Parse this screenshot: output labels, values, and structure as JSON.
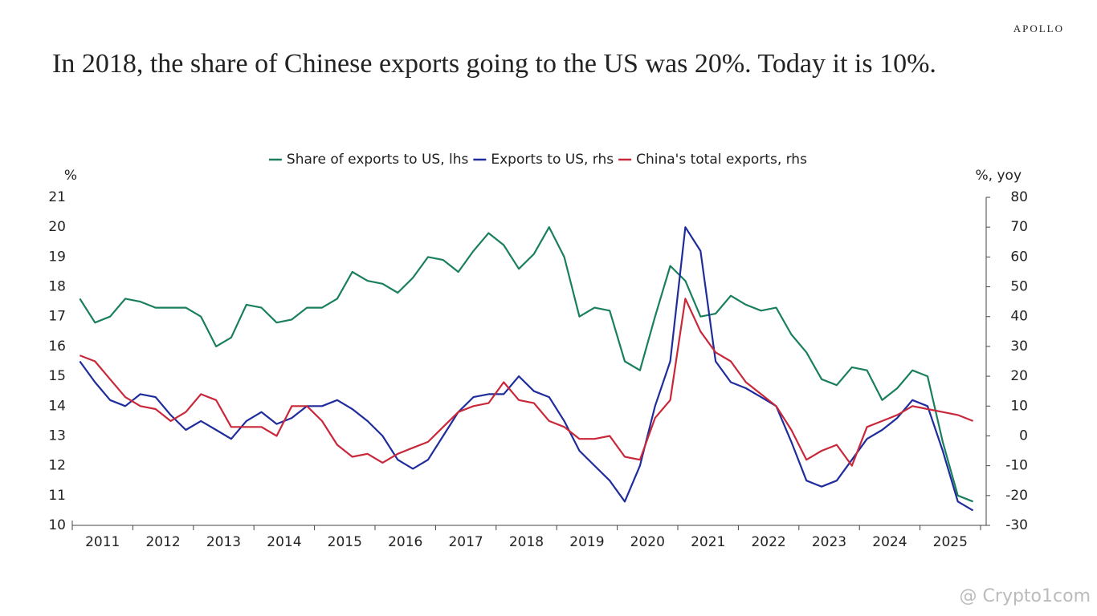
{
  "brand": "APOLLO",
  "watermark": "@ Crypto1com",
  "chart_data": {
    "type": "line",
    "title": "In 2018, the share of Chinese exports going to the US was 20%. Today it is 10%.",
    "y_label": "%",
    "y2_label": "%, yoy",
    "categories": [
      null,
      "2011",
      null,
      null,
      null,
      "2012",
      null,
      null,
      null,
      "2013",
      null,
      null,
      null,
      "2014",
      null,
      null,
      null,
      "2015",
      null,
      null,
      null,
      "2016",
      null,
      null,
      null,
      "2017",
      null,
      null,
      null,
      "2018",
      null,
      null,
      null,
      "2019",
      null,
      null,
      null,
      "2020",
      null,
      null,
      null,
      "2021",
      null,
      null,
      null,
      "2022",
      null,
      null,
      null,
      "2023",
      null,
      null,
      null,
      "2024",
      null,
      null,
      null,
      "2025",
      null,
      null
    ],
    "ylim": [
      10,
      21
    ],
    "yticks": [
      10,
      11,
      12,
      13,
      14,
      15,
      16,
      17,
      18,
      19,
      20,
      21
    ],
    "y2lim": [
      -30,
      80
    ],
    "y2ticks": [
      -30,
      -20,
      -10,
      0,
      10,
      20,
      30,
      40,
      50,
      60,
      70,
      80
    ],
    "series": [
      {
        "name": "Share of exports to US, lhs",
        "color": "#1a7f5e",
        "values": [
          17.6,
          16.8,
          17.0,
          17.6,
          17.5,
          17.3,
          17.3,
          17.3,
          17.0,
          16.0,
          16.3,
          17.4,
          17.3,
          16.8,
          16.9,
          17.3,
          17.3,
          17.6,
          18.5,
          18.2,
          18.1,
          17.8,
          18.3,
          19.0,
          18.9,
          18.5,
          19.2,
          19.8,
          19.4,
          18.6,
          19.1,
          20.0,
          19.0,
          17.0,
          17.3,
          17.2,
          15.5,
          15.2,
          17.0,
          18.7,
          18.2,
          17.0,
          17.1,
          17.7,
          17.4,
          17.2,
          17.3,
          16.4,
          15.8,
          14.9,
          14.7,
          15.3,
          15.2,
          14.2,
          14.6,
          15.2,
          15.0,
          12.8,
          11.0,
          10.8
        ]
      },
      {
        "name": "Exports to US, rhs",
        "color": "#1f2c9c",
        "axis": "y2",
        "values": [
          25,
          18,
          12,
          10,
          14,
          13,
          7,
          2,
          5,
          2,
          -1,
          5,
          8,
          4,
          6,
          10,
          10,
          12,
          9,
          5,
          0,
          -8,
          -11,
          -8,
          0,
          8,
          13,
          14,
          14,
          20,
          15,
          13,
          5,
          -5,
          -10,
          -15,
          -22,
          -10,
          10,
          25,
          70,
          62,
          25,
          18,
          16,
          13,
          10,
          -2,
          -15,
          -17,
          -15,
          -8,
          -1,
          2,
          6,
          12,
          10,
          -5,
          -22,
          -25
        ]
      },
      {
        "name": "China's total exports, rhs",
        "color": "#c8283a",
        "axis": "y2",
        "values": [
          27,
          25,
          19,
          13,
          10,
          9,
          5,
          8,
          14,
          12,
          3,
          3,
          3,
          0,
          10,
          10,
          5,
          -3,
          -7,
          -6,
          -9,
          -6,
          -4,
          -2,
          3,
          8,
          10,
          11,
          18,
          12,
          11,
          5,
          3,
          -1,
          -1,
          0,
          -7,
          -8,
          6,
          12,
          46,
          35,
          28,
          25,
          18,
          14,
          10,
          2,
          -8,
          -5,
          -3,
          -10,
          3,
          5,
          7,
          10,
          9,
          8,
          7,
          5
        ]
      }
    ]
  }
}
